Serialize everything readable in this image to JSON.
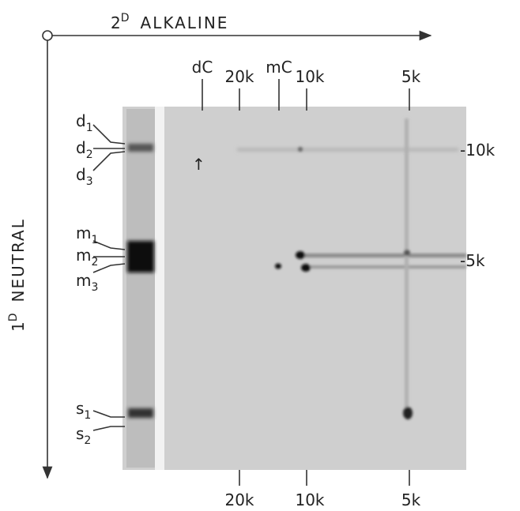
{
  "axes": {
    "horizontal": {
      "number": "2",
      "superscript": "D",
      "label": "ALKALINE"
    },
    "vertical": {
      "number": "1",
      "superscript": "D",
      "label": "NEUTRAL"
    }
  },
  "top_markers": [
    "dC",
    "20k",
    "mC",
    "10k",
    "5k"
  ],
  "right_markers": [
    "-10k",
    "-5k"
  ],
  "bottom_markers": [
    "20k",
    "10k",
    "5k"
  ],
  "lane_labels": [
    {
      "letter": "d",
      "sub": "1"
    },
    {
      "letter": "d",
      "sub": "2"
    },
    {
      "letter": "d",
      "sub": "3"
    },
    {
      "letter": "m",
      "sub": "1"
    },
    {
      "letter": "m",
      "sub": "2"
    },
    {
      "letter": "m",
      "sub": "3"
    },
    {
      "letter": "s",
      "sub": "1"
    },
    {
      "letter": "s",
      "sub": "2"
    }
  ],
  "gel_arrow": "↑"
}
